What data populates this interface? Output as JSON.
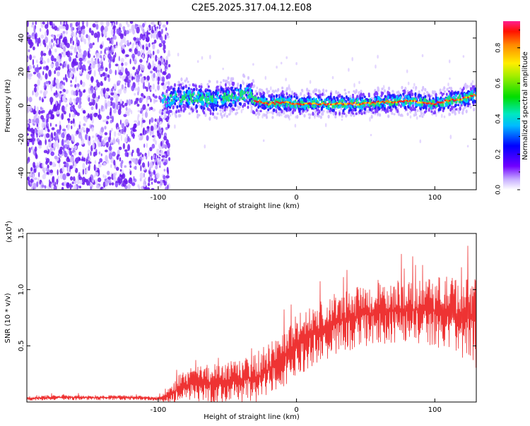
{
  "title": "C2E5.2025.317.04.12.E08",
  "chart_data": [
    {
      "type": "heatmap",
      "name": "spectrogram",
      "xlabel": "Height of straight line (km)",
      "ylabel": "Frequency (Hz)",
      "xlim": [
        -195,
        130
      ],
      "ylim": [
        -50,
        50
      ],
      "xticks": [
        -100,
        0,
        100
      ],
      "xtick_labels": [
        "-100",
        "0",
        "100"
      ],
      "yticks": [
        -40,
        -20,
        0,
        20,
        40
      ],
      "ytick_labels": [
        "-40",
        "-20",
        "0",
        "20",
        "40"
      ],
      "noise_region_x": [
        -195,
        -95
      ],
      "ridge": {
        "x": [
          -97,
          -90,
          -80,
          -70,
          -60,
          -50,
          -40,
          -35,
          -30,
          -25,
          -20,
          -10,
          0,
          10,
          20,
          30,
          40,
          50,
          60,
          70,
          80,
          90,
          100,
          110,
          120,
          128
        ],
        "y": [
          3,
          4,
          5,
          4,
          3,
          5,
          6,
          7,
          3,
          2,
          1,
          2,
          1,
          1,
          1,
          1,
          1,
          1,
          2,
          2,
          3,
          2,
          1,
          3,
          4,
          6
        ]
      },
      "colorbar": {
        "label": "Normalized spectral amplitude",
        "range": [
          0,
          0.95
        ],
        "ticks": [
          0.0,
          0.2,
          0.4,
          0.6,
          0.8
        ],
        "tick_labels": [
          "0.0",
          "0.2",
          "0.4",
          "0.6",
          "0.8"
        ]
      }
    },
    {
      "type": "line",
      "name": "snr",
      "xlabel": "Height of straight line (km)",
      "ylabel": "SNR (10 * v/v)",
      "y_multiplier": "(x10",
      "y_multiplier_exp": "4",
      "y_multiplier_close": ")",
      "xlim": [
        -195,
        130
      ],
      "ylim": [
        0,
        1.5
      ],
      "xticks": [
        -100,
        0,
        100
      ],
      "xtick_labels": [
        "-100",
        "0",
        "100"
      ],
      "yticks": [
        0.5,
        1.0,
        1.5
      ],
      "ytick_labels": [
        "0.5",
        "1.0",
        "1.5"
      ],
      "color": "#ee3333",
      "series": [
        {
          "name": "SNR",
          "x": [
            -195,
            -180,
            -160,
            -140,
            -120,
            -100,
            -95,
            -90,
            -85,
            -80,
            -70,
            -60,
            -50,
            -40,
            -30,
            -25,
            -20,
            -15,
            -10,
            -5,
            0,
            10,
            20,
            30,
            40,
            50,
            60,
            70,
            80,
            90,
            100,
            110,
            120,
            130
          ],
          "y": [
            0.03,
            0.04,
            0.04,
            0.04,
            0.04,
            0.03,
            0.04,
            0.08,
            0.12,
            0.15,
            0.17,
            0.17,
            0.19,
            0.2,
            0.22,
            0.24,
            0.3,
            0.35,
            0.4,
            0.45,
            0.52,
            0.58,
            0.65,
            0.72,
            0.75,
            0.78,
            0.8,
            0.81,
            0.82,
            0.83,
            0.82,
            0.8,
            0.77,
            0.72
          ],
          "noise": [
            0.02,
            0.02,
            0.02,
            0.02,
            0.02,
            0.02,
            0.04,
            0.08,
            0.12,
            0.14,
            0.15,
            0.17,
            0.17,
            0.18,
            0.2,
            0.2,
            0.22,
            0.22,
            0.24,
            0.25,
            0.26,
            0.26,
            0.26,
            0.26,
            0.26,
            0.26,
            0.26,
            0.27,
            0.27,
            0.28,
            0.3,
            0.32,
            0.35,
            0.38
          ]
        }
      ]
    }
  ]
}
